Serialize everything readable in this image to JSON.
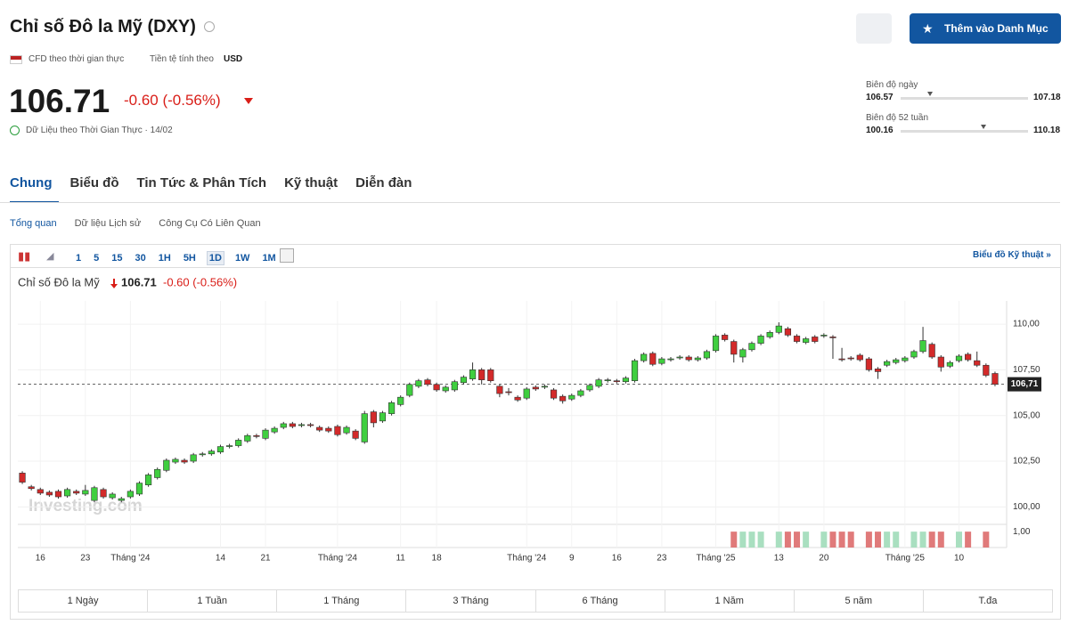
{
  "header": {
    "title": "Chỉ số Đô la Mỹ (DXY)",
    "cfd": "CFD theo thời gian thực",
    "currency_label": "Tiền tệ tính theo",
    "currency": "USD",
    "price": "106.71",
    "change": "-0.60 (-0.56%)",
    "realtime": "Dữ Liệu theo Thời Gian Thực · 14/02",
    "add_button": "Thêm vào Danh Mục"
  },
  "ranges": [
    {
      "label": "Biên độ ngày",
      "low": "106.57",
      "high": "107.18"
    },
    {
      "label": "Biên độ 52 tuần",
      "low": "100.16",
      "high": "110.18"
    }
  ],
  "tabs": [
    "Chung",
    "Biểu đồ",
    "Tin Tức & Phân Tích",
    "Kỹ thuật",
    "Diễn đàn"
  ],
  "subtabs": [
    "Tổng quan",
    "Dữ liệu Lịch sử",
    "Công Cụ Có Liên Quan"
  ],
  "toolbar": {
    "intervals": [
      "1",
      "5",
      "15",
      "30",
      "1H",
      "5H",
      "1D",
      "1W",
      "1M"
    ],
    "link": "Biểu đồ Kỹ thuật »"
  },
  "periods": [
    "1 Ngày",
    "1 Tuần",
    "1 Tháng",
    "3 Tháng",
    "6 Tháng",
    "1 Năm",
    "5 năm",
    "T.đa"
  ],
  "chart_data": {
    "type": "candlestick",
    "title": "Chỉ số Đô la Mỹ",
    "watermark": "Investing.com",
    "up_color": "#3fcf3f",
    "down_color": "#d32a2a",
    "volume_up_color": "#a9dfc0",
    "volume_down_color": "#e07a7a",
    "ylim": [
      99.09,
      111.27
    ],
    "yticks": [
      {
        "value": 100,
        "label": "100,00"
      },
      {
        "value": 102.5,
        "label": "102,50"
      },
      {
        "value": 105,
        "label": "105,00"
      },
      {
        "value": 107.5,
        "label": "107,50"
      },
      {
        "value": 110,
        "label": "110,00"
      }
    ],
    "grid": true,
    "last_price": {
      "value": 106.71,
      "label": "106,71"
    },
    "vlim": [
      0,
      1.4
    ],
    "vticks": [
      {
        "value": 1,
        "label": "1,00"
      }
    ],
    "categories": [
      null,
      null,
      "16",
      null,
      null,
      null,
      null,
      "23",
      null,
      null,
      null,
      null,
      "Tháng '24",
      null,
      null,
      null,
      null,
      null,
      null,
      null,
      null,
      null,
      "14",
      null,
      null,
      null,
      null,
      "21",
      null,
      null,
      null,
      null,
      null,
      null,
      null,
      "Tháng '24",
      null,
      null,
      null,
      null,
      null,
      null,
      "11",
      null,
      null,
      null,
      "18",
      null,
      null,
      null,
      null,
      null,
      null,
      null,
      null,
      null,
      "Tháng '24",
      null,
      null,
      null,
      null,
      "9",
      null,
      null,
      null,
      null,
      "16",
      null,
      null,
      null,
      null,
      "23",
      null,
      null,
      null,
      null,
      null,
      "Tháng '25",
      null,
      null,
      null,
      null,
      null,
      null,
      "13",
      null,
      null,
      null,
      null,
      "20",
      null,
      null,
      null,
      null,
      null,
      null,
      null,
      null,
      "Tháng '25",
      null,
      null,
      null,
      null,
      null,
      "10",
      null,
      null,
      null,
      null
    ],
    "open": [
      101.85,
      101.1,
      100.95,
      100.8,
      100.85,
      100.6,
      100.85,
      100.7,
      100.35,
      100.95,
      100.5,
      100.35,
      100.55,
      100.7,
      101.2,
      101.6,
      102.0,
      102.45,
      102.55,
      102.5,
      102.85,
      102.9,
      103.0,
      103.3,
      103.35,
      103.6,
      103.9,
      103.75,
      104.1,
      104.35,
      104.55,
      104.45,
      104.5,
      104.35,
      104.3,
      104.4,
      104.05,
      104.15,
      103.55,
      105.2,
      104.7,
      105.1,
      105.6,
      106.1,
      106.6,
      106.95,
      106.7,
      106.35,
      106.4,
      106.8,
      107.0,
      107.5,
      107.5,
      106.6,
      106.3,
      106.0,
      105.95,
      106.55,
      106.55,
      106.4,
      106.05,
      105.9,
      106.1,
      106.4,
      106.6,
      106.9,
      106.9,
      106.85,
      106.9,
      108.0,
      108.4,
      107.85,
      108.05,
      108.15,
      108.2,
      108.05,
      108.15,
      108.55,
      109.4,
      109.05,
      108.2,
      108.6,
      108.95,
      109.3,
      109.55,
      109.75,
      109.35,
      109.0,
      109.3,
      109.35,
      109.3,
      108.1,
      108.15,
      108.3,
      108.1,
      107.55,
      107.75,
      107.9,
      108.0,
      108.2,
      108.5,
      108.9,
      108.2,
      107.7,
      108.0,
      108.35,
      108.0,
      107.75,
      107.3
    ],
    "high": [
      101.95,
      101.2,
      101.05,
      100.9,
      100.95,
      101.05,
      100.95,
      101.2,
      101.15,
      101.05,
      100.8,
      100.55,
      100.95,
      101.4,
      101.85,
      102.15,
      102.65,
      102.7,
      102.65,
      102.95,
      103.0,
      103.15,
      103.4,
      103.45,
      103.75,
      104.0,
      104.0,
      104.3,
      104.4,
      104.65,
      104.65,
      104.6,
      104.6,
      104.45,
      104.4,
      104.5,
      104.45,
      104.25,
      105.25,
      105.3,
      105.25,
      105.8,
      106.1,
      106.8,
      107.0,
      107.05,
      106.8,
      106.65,
      106.95,
      107.2,
      107.9,
      107.6,
      107.6,
      106.7,
      106.5,
      106.1,
      106.55,
      106.65,
      106.7,
      106.5,
      106.15,
      106.2,
      106.45,
      106.75,
      107.05,
      107.05,
      107.0,
      107.15,
      108.1,
      108.45,
      108.5,
      108.2,
      108.2,
      108.3,
      108.3,
      108.25,
      108.6,
      109.45,
      109.5,
      109.15,
      108.7,
      109.05,
      109.45,
      109.65,
      110.1,
      109.85,
      109.45,
      109.3,
      109.4,
      109.5,
      109.4,
      108.7,
      108.25,
      108.4,
      108.2,
      107.65,
      108.05,
      108.15,
      108.25,
      108.6,
      109.85,
      109.0,
      108.3,
      108.0,
      108.35,
      108.45,
      108.5,
      107.85,
      107.4
    ],
    "low": [
      101.25,
      100.9,
      100.65,
      100.55,
      100.45,
      100.5,
      100.65,
      100.6,
      100.25,
      100.45,
      100.4,
      100.25,
      100.45,
      100.6,
      101.1,
      101.5,
      101.9,
      102.35,
      102.35,
      102.4,
      102.75,
      102.8,
      102.9,
      103.2,
      103.25,
      103.5,
      103.75,
      103.65,
      104.0,
      104.25,
      104.3,
      104.35,
      104.35,
      104.1,
      104.05,
      103.85,
      103.95,
      103.65,
      103.45,
      104.35,
      104.6,
      105.0,
      105.5,
      106.0,
      106.5,
      106.6,
      106.3,
      106.25,
      106.3,
      106.7,
      106.9,
      106.7,
      106.8,
      106.0,
      106.1,
      105.75,
      105.85,
      106.35,
      106.45,
      105.85,
      105.65,
      105.8,
      106.0,
      106.3,
      106.5,
      106.8,
      106.75,
      106.75,
      106.8,
      107.9,
      107.7,
      107.75,
      107.95,
      108.05,
      107.95,
      107.95,
      108.05,
      108.45,
      109.05,
      107.9,
      107.9,
      108.5,
      108.85,
      109.2,
      109.45,
      109.3,
      108.95,
      108.9,
      108.95,
      109.25,
      108.1,
      107.95,
      108.0,
      107.95,
      107.4,
      107.0,
      107.65,
      107.8,
      107.9,
      108.1,
      108.4,
      108.1,
      107.4,
      107.6,
      107.9,
      107.95,
      107.65,
      107.1,
      106.6
    ],
    "close": [
      101.35,
      101.0,
      100.75,
      100.65,
      100.55,
      100.95,
      100.75,
      100.9,
      101.05,
      100.55,
      100.7,
      100.45,
      100.85,
      101.3,
      101.75,
      102.05,
      102.55,
      102.6,
      102.45,
      102.85,
      102.9,
      103.05,
      103.3,
      103.35,
      103.65,
      103.9,
      103.85,
      104.2,
      104.3,
      104.55,
      104.4,
      104.5,
      104.45,
      104.2,
      104.15,
      103.95,
      104.35,
      103.75,
      105.1,
      104.6,
      105.15,
      105.7,
      106.0,
      106.7,
      106.9,
      106.7,
      106.4,
      106.55,
      106.85,
      107.1,
      107.5,
      106.95,
      106.9,
      106.2,
      106.25,
      105.85,
      106.45,
      106.45,
      106.6,
      105.95,
      105.8,
      106.1,
      106.35,
      106.65,
      106.95,
      106.95,
      106.85,
      107.05,
      108.0,
      108.35,
      107.8,
      108.1,
      108.1,
      108.2,
      108.05,
      108.15,
      108.5,
      109.35,
      109.15,
      108.35,
      108.6,
      108.95,
      109.35,
      109.55,
      109.9,
      109.4,
      109.05,
      109.2,
      109.05,
      109.4,
      109.25,
      108.05,
      108.1,
      108.05,
      107.5,
      107.4,
      107.95,
      108.05,
      108.15,
      108.5,
      109.1,
      108.2,
      107.65,
      107.9,
      108.25,
      108.05,
      107.75,
      107.2,
      106.71
    ],
    "volume": [
      null,
      null,
      null,
      null,
      null,
      null,
      null,
      null,
      null,
      null,
      null,
      null,
      null,
      null,
      null,
      null,
      null,
      null,
      null,
      null,
      null,
      null,
      null,
      null,
      null,
      null,
      null,
      null,
      null,
      null,
      null,
      null,
      null,
      null,
      null,
      null,
      null,
      null,
      null,
      null,
      null,
      null,
      null,
      null,
      null,
      null,
      null,
      null,
      null,
      null,
      null,
      null,
      null,
      null,
      null,
      null,
      null,
      null,
      null,
      null,
      null,
      null,
      null,
      null,
      null,
      null,
      null,
      null,
      null,
      null,
      null,
      null,
      null,
      null,
      null,
      null,
      null,
      null,
      null,
      1,
      1,
      1,
      1,
      null,
      1,
      1,
      1,
      1,
      null,
      1,
      1,
      1,
      1,
      null,
      1,
      1,
      1,
      1,
      null,
      1,
      1,
      1,
      1,
      null,
      1,
      1,
      null,
      1,
      null
    ]
  }
}
